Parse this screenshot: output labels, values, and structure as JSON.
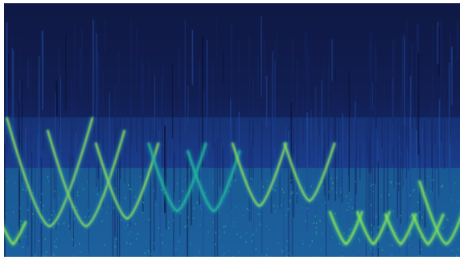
{
  "chart_data": {
    "type": "heatmap",
    "title": "",
    "xlabel": "",
    "ylabel": "",
    "axes_shown": false,
    "grid": false,
    "legend": "none",
    "colormap": [
      "#0a0c2c",
      "#152766",
      "#1f4ca0",
      "#1f8fb4",
      "#27c08f",
      "#a7e34a",
      "#f2f56a"
    ],
    "background_color": "#0b0d2a",
    "time_range": [
      0,
      1
    ],
    "frequency_range": [
      0,
      1
    ],
    "events": [
      {
        "type": "sweep",
        "t": 0.02,
        "f_low": 0.05,
        "f_high": 0.14,
        "intensity": 0.95
      },
      {
        "type": "sweep",
        "t": 0.1,
        "f_low": 0.12,
        "f_high": 0.55,
        "intensity": 0.85
      },
      {
        "type": "sweep",
        "t": 0.18,
        "f_low": 0.12,
        "f_high": 0.5,
        "intensity": 0.85
      },
      {
        "type": "sweep",
        "t": 0.27,
        "f_low": 0.15,
        "f_high": 0.45,
        "intensity": 0.85
      },
      {
        "type": "sweep",
        "t": 0.38,
        "f_low": 0.18,
        "f_high": 0.45,
        "intensity": 0.8
      },
      {
        "type": "sweep",
        "t": 0.46,
        "f_low": 0.18,
        "f_high": 0.42,
        "intensity": 0.8
      },
      {
        "type": "sweep",
        "t": 0.56,
        "f_low": 0.2,
        "f_high": 0.45,
        "intensity": 0.85
      },
      {
        "type": "sweep",
        "t": 0.67,
        "f_low": 0.22,
        "f_high": 0.45,
        "intensity": 0.85
      },
      {
        "type": "sweep",
        "t": 0.75,
        "f_low": 0.05,
        "f_high": 0.18,
        "intensity": 0.9
      },
      {
        "type": "sweep",
        "t": 0.81,
        "f_low": 0.05,
        "f_high": 0.18,
        "intensity": 0.9
      },
      {
        "type": "sweep",
        "t": 0.87,
        "f_low": 0.05,
        "f_high": 0.17,
        "intensity": 0.9
      },
      {
        "type": "sweep",
        "t": 0.93,
        "f_low": 0.05,
        "f_high": 0.17,
        "intensity": 0.9
      },
      {
        "type": "sweep",
        "t": 0.97,
        "f_low": 0.05,
        "f_high": 0.3,
        "intensity": 0.9
      }
    ],
    "bands": [
      {
        "f_low": 0.0,
        "f_high": 0.35,
        "level": 0.55
      },
      {
        "f_low": 0.35,
        "f_high": 0.55,
        "level": 0.4
      },
      {
        "f_low": 0.55,
        "f_high": 1.0,
        "level": 0.18
      }
    ]
  }
}
